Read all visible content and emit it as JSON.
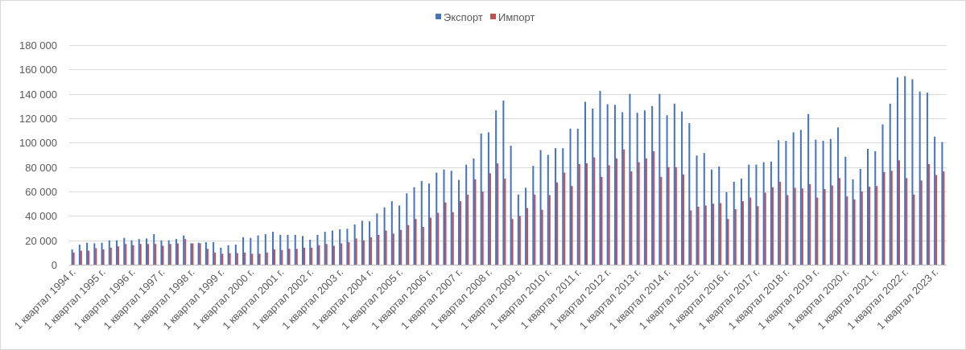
{
  "chart_data": {
    "type": "bar",
    "title": "",
    "xlabel": "",
    "ylabel": "",
    "ylim": [
      0,
      180000
    ],
    "yticks": [
      0,
      20000,
      40000,
      60000,
      80000,
      100000,
      120000,
      140000,
      160000,
      180000
    ],
    "ytick_labels": [
      "0",
      "20 000",
      "40 000",
      "60 000",
      "80 000",
      "100 000",
      "120 000",
      "140 000",
      "160 000",
      "180 000"
    ],
    "grid": true,
    "legend": "top-center",
    "colors": {
      "export": "#4472c4",
      "import": "#c0504d",
      "grid": "#d9d9d9",
      "axis": "#bfbfbf"
    },
    "category_labels": [
      "1 квартал 1994 г.",
      "1 квартал 1995 г.",
      "1 квартал 1996 г.",
      "1 квартал 1997 г.",
      "1 квартал 1998 г.",
      "1 квартал 1999 г.",
      "1 квартал 2000 г.",
      "1 квартал 2001 г.",
      "1 квартал 2002 г.",
      "1 квартал 2003 г.",
      "1 квартал 2004 г.",
      "1 квартал 2005 г.",
      "1 квартал 2006 г.",
      "1 квартал 2007 г.",
      "1 квартал 2008 г.",
      "1 квартал 2009 г.",
      "1 квартал 2010 г.",
      "1 квартал 2011 г.",
      "1 квартал 2012 г.",
      "1 квартал 2013 г.",
      "1 квартал 2014 г.",
      "1 квартал 2015 г.",
      "1 квартал 2016 г.",
      "1 квартал 2017 г.",
      "1 квартал 2018 г.",
      "1 квартал 2019 г.",
      "1 квартал 2020 г.",
      "1 квартал 2021 г.",
      "1 квартал 2022 г.",
      "1 квартал 2023 г."
    ],
    "quarters_per_label": 4,
    "series": [
      {
        "name": "Экспорт",
        "values": [
          12500,
          16500,
          18000,
          17500,
          18000,
          20000,
          20000,
          22000,
          20000,
          21000,
          21500,
          25000,
          20000,
          20000,
          21000,
          24000,
          17500,
          18000,
          18500,
          18500,
          14000,
          16000,
          16500,
          22500,
          22000,
          24000,
          25000,
          27000,
          24500,
          24500,
          24500,
          23500,
          20500,
          24500,
          27000,
          28000,
          29000,
          29500,
          33000,
          36000,
          35500,
          42000,
          47000,
          52000,
          48500,
          58500,
          63500,
          68500,
          66500,
          75500,
          78000,
          77000,
          69500,
          82000,
          87000,
          107500,
          108500,
          126500,
          134500,
          97500,
          57500,
          63000,
          81000,
          94000,
          90000,
          95500,
          95500,
          111500,
          111500,
          133500,
          128000,
          142500,
          131500,
          131000,
          125000,
          140000,
          124500,
          126500,
          130000,
          140000,
          122500,
          132000,
          125500,
          116000,
          89500,
          91500,
          78000,
          80500,
          59500,
          68000,
          70500,
          82000,
          82000,
          84000,
          84500,
          102000,
          101500,
          108500,
          110500,
          123500,
          102500,
          101500,
          103000,
          112500,
          88500,
          70000,
          78500,
          95000,
          93000,
          115000,
          132000,
          153500,
          154500,
          152000,
          142000,
          141000,
          105000,
          100500
        ]
      },
      {
        "name": "Импорт",
        "values": [
          10000,
          11500,
          11500,
          13500,
          12500,
          14000,
          15000,
          17000,
          16000,
          17000,
          17000,
          17000,
          15500,
          17000,
          17500,
          21000,
          17500,
          17500,
          13000,
          10000,
          9000,
          9500,
          9500,
          10000,
          9000,
          9000,
          10000,
          12500,
          12000,
          13000,
          13000,
          14000,
          14000,
          16000,
          17000,
          15500,
          17500,
          18500,
          21500,
          20000,
          22500,
          24500,
          28000,
          25500,
          28500,
          32500,
          37500,
          31000,
          38500,
          42500,
          51000,
          43000,
          52000,
          57500,
          70000,
          60000,
          75000,
          83000,
          70500,
          37500,
          40000,
          46500,
          57500,
          45000,
          57000,
          67500,
          75500,
          64500,
          82500,
          83000,
          88000,
          72000,
          81500,
          87000,
          94500,
          76500,
          84000,
          87000,
          93000,
          72000,
          80000,
          80000,
          74000,
          44500,
          47500,
          48500,
          50000,
          50500,
          37500,
          45500,
          52000,
          55000,
          48000,
          59000,
          63500,
          68000,
          57000,
          63000,
          62500,
          66000,
          55000,
          62000,
          65000,
          71000,
          56000,
          53500,
          60000,
          64000,
          64500,
          76000,
          77000,
          85500,
          71000,
          57500,
          69000,
          82500,
          73500,
          76500
        ]
      }
    ]
  }
}
